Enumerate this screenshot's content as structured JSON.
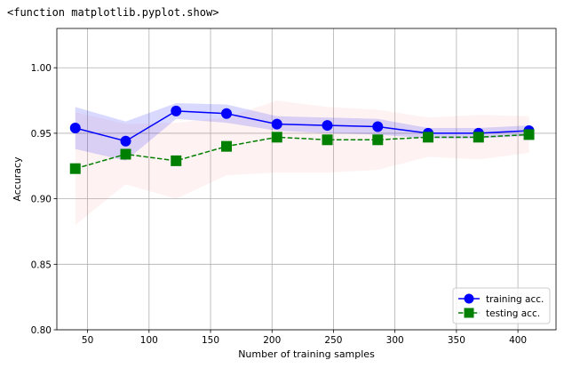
{
  "output_repr": "<function matplotlib.pyplot.show>",
  "chart_data": {
    "type": "line",
    "title": "",
    "xlabel": "Number of training samples",
    "ylabel": "Accuracy",
    "xlim": [
      25,
      431
    ],
    "ylim": [
      0.8,
      1.03
    ],
    "xticks": [
      50,
      100,
      150,
      200,
      250,
      300,
      350,
      400
    ],
    "xtick_labels": [
      "50",
      "100",
      "150",
      "200",
      "250",
      "300",
      "350",
      "400"
    ],
    "yticks": [
      0.8,
      0.85,
      0.9,
      0.95,
      1.0
    ],
    "ytick_labels": [
      "0.80",
      "0.85",
      "0.90",
      "0.95",
      "1.00"
    ],
    "grid": true,
    "legend_placement": "lower right",
    "x": [
      40,
      81,
      122,
      163,
      204,
      245,
      286,
      327,
      368,
      409
    ],
    "series": [
      {
        "name": "training acc.",
        "marker": "circle",
        "linestyle": "solid",
        "color": "#0000ff",
        "band_color": "#0000ff",
        "values": [
          0.954,
          0.944,
          0.967,
          0.965,
          0.957,
          0.956,
          0.955,
          0.95,
          0.95,
          0.952
        ],
        "band_lower": [
          0.938,
          0.929,
          0.961,
          0.958,
          0.952,
          0.95,
          0.949,
          0.946,
          0.946,
          0.948
        ],
        "band_upper": [
          0.97,
          0.959,
          0.973,
          0.972,
          0.963,
          0.962,
          0.961,
          0.954,
          0.954,
          0.956
        ]
      },
      {
        "name": "testing acc.",
        "marker": "square",
        "linestyle": "dashed",
        "color": "#008000",
        "band_color": "#ff8080",
        "values": [
          0.923,
          0.934,
          0.929,
          0.94,
          0.947,
          0.945,
          0.945,
          0.947,
          0.947,
          0.949
        ],
        "band_lower": [
          0.88,
          0.911,
          0.9,
          0.918,
          0.92,
          0.92,
          0.922,
          0.932,
          0.93,
          0.935
        ],
        "band_upper": [
          0.966,
          0.957,
          0.958,
          0.962,
          0.975,
          0.97,
          0.968,
          0.962,
          0.964,
          0.963
        ]
      }
    ]
  }
}
